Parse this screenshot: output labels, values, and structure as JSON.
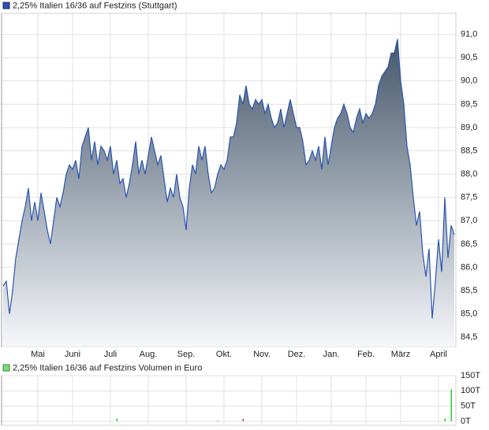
{
  "chart_data": [
    {
      "type": "area",
      "title": "2,25% Italien 16/36 auf Festzins (Stuttgart)",
      "categories": [
        null,
        null,
        null,
        null,
        null,
        null,
        null,
        null,
        null,
        null,
        null,
        "Mai",
        null,
        null,
        null,
        null,
        null,
        null,
        null,
        null,
        null,
        null,
        "Juni",
        null,
        null,
        null,
        null,
        null,
        null,
        null,
        null,
        null,
        null,
        null,
        "Juli",
        null,
        null,
        null,
        null,
        null,
        null,
        null,
        null,
        null,
        null,
        null,
        "Aug.",
        null,
        null,
        null,
        null,
        null,
        null,
        null,
        null,
        null,
        null,
        null,
        "Sep.",
        null,
        null,
        null,
        null,
        null,
        null,
        null,
        null,
        null,
        null,
        null,
        "Okt.",
        null,
        null,
        null,
        null,
        null,
        null,
        null,
        null,
        null,
        null,
        null,
        "Nov.",
        null,
        null,
        null,
        null,
        null,
        null,
        null,
        null,
        null,
        null,
        "Dez.",
        null,
        null,
        null,
        null,
        null,
        null,
        null,
        null,
        null,
        null,
        "Jan.",
        null,
        null,
        null,
        null,
        null,
        null,
        null,
        null,
        null,
        null,
        "Feb.",
        null,
        null,
        null,
        null,
        null,
        null,
        null,
        null,
        null,
        null,
        "März",
        null,
        null,
        null,
        null,
        null,
        null,
        null,
        null,
        null,
        null,
        null,
        "April",
        null,
        null,
        null,
        null,
        null
      ],
      "values": [
        85.6,
        85.7,
        85.0,
        85.5,
        86.2,
        86.6,
        87.0,
        87.3,
        87.7,
        87.0,
        87.4,
        87.0,
        87.6,
        87.2,
        86.8,
        86.5,
        87.0,
        87.5,
        87.3,
        87.6,
        88.0,
        88.2,
        88.1,
        88.3,
        87.9,
        88.6,
        88.8,
        89.0,
        88.3,
        88.7,
        88.2,
        88.6,
        88.5,
        88.3,
        88.6,
        88.0,
        88.3,
        87.8,
        87.9,
        87.5,
        87.8,
        88.2,
        88.7,
        88.0,
        88.3,
        88.0,
        88.4,
        88.8,
        88.5,
        88.2,
        88.4,
        87.9,
        87.4,
        87.7,
        87.5,
        88.0,
        87.5,
        87.3,
        86.8,
        87.7,
        88.2,
        88.0,
        88.6,
        88.3,
        88.6,
        88.0,
        87.6,
        87.7,
        88.0,
        88.2,
        88.1,
        88.3,
        88.8,
        88.8,
        89.1,
        89.7,
        89.5,
        89.9,
        89.5,
        89.4,
        89.6,
        89.5,
        89.6,
        89.3,
        89.5,
        89.2,
        89.0,
        89.1,
        89.4,
        89.0,
        89.3,
        89.6,
        89.3,
        89.0,
        89.0,
        88.7,
        88.2,
        88.3,
        88.5,
        88.3,
        88.6,
        88.1,
        88.8,
        88.2,
        88.6,
        89.0,
        89.2,
        89.3,
        89.5,
        89.3,
        89.0,
        88.9,
        89.2,
        89.4,
        89.1,
        89.3,
        89.2,
        89.3,
        89.5,
        89.9,
        90.1,
        90.2,
        90.3,
        90.6,
        90.6,
        90.9,
        90.0,
        89.5,
        88.6,
        88.2,
        87.5,
        86.9,
        87.2,
        86.3,
        85.8,
        86.4,
        84.9,
        85.7,
        86.6,
        85.9,
        87.5,
        86.2,
        86.9,
        86.7
      ],
      "color": "#2a55b0",
      "ylim": [
        84.3,
        91.45
      ],
      "yticks": [
        {
          "value": 84.5,
          "label": "84,5"
        },
        {
          "value": 85,
          "label": "85,0"
        },
        {
          "value": 85.5,
          "label": "85,5"
        },
        {
          "value": 86,
          "label": "86,0"
        },
        {
          "value": 86.5,
          "label": "86,5"
        },
        {
          "value": 87,
          "label": "87,0"
        },
        {
          "value": 87.5,
          "label": "87,5"
        },
        {
          "value": 88,
          "label": "88,0"
        },
        {
          "value": 88.5,
          "label": "88,5"
        },
        {
          "value": 89,
          "label": "89,0"
        },
        {
          "value": 89.5,
          "label": "89,5"
        },
        {
          "value": 90,
          "label": "90,0"
        },
        {
          "value": 90.5,
          "label": "90,5"
        },
        {
          "value": 91,
          "label": "91,0"
        }
      ],
      "grid": true
    },
    {
      "type": "bar",
      "title": "2,25% Italien 16/36 auf Festzins Volumen in Euro",
      "values": [
        0,
        0,
        0,
        0,
        0,
        0,
        0,
        0,
        0,
        0,
        0,
        0,
        0,
        0,
        0,
        0,
        0,
        0,
        0,
        0,
        0,
        0,
        0,
        0,
        0,
        0,
        0,
        0,
        0,
        0,
        0,
        0,
        0,
        0,
        0,
        0,
        10000,
        0,
        0,
        0,
        0,
        0,
        0,
        0,
        0,
        0,
        0,
        0,
        0,
        0,
        0,
        0,
        0,
        0,
        0,
        0,
        0,
        0,
        0,
        0,
        0,
        0,
        0,
        0,
        0,
        0,
        0,
        0,
        3000,
        0,
        0,
        0,
        0,
        0,
        0,
        0,
        8000,
        0,
        0,
        0,
        0,
        0,
        0,
        0,
        0,
        0,
        0,
        0,
        0,
        0,
        0,
        0,
        0,
        0,
        0,
        0,
        0,
        0,
        0,
        0,
        0,
        0,
        0,
        0,
        0,
        0,
        0,
        0,
        0,
        0,
        0,
        0,
        0,
        0,
        0,
        0,
        0,
        0,
        0,
        0,
        0,
        0,
        0,
        0,
        0,
        0,
        0,
        0,
        0,
        0,
        0,
        0,
        0,
        0,
        0,
        0,
        0,
        0,
        0,
        0,
        10000,
        0,
        105000,
        0
      ],
      "up_color": "#33cc33",
      "down_color": "#e03030",
      "ylim": [
        0,
        150000
      ],
      "yticks": [
        {
          "value": 0,
          "label": "0T"
        },
        {
          "value": 50000,
          "label": "50T"
        },
        {
          "value": 100000,
          "label": "100T"
        },
        {
          "value": 150000,
          "label": "150T"
        }
      ],
      "grid": true
    }
  ]
}
